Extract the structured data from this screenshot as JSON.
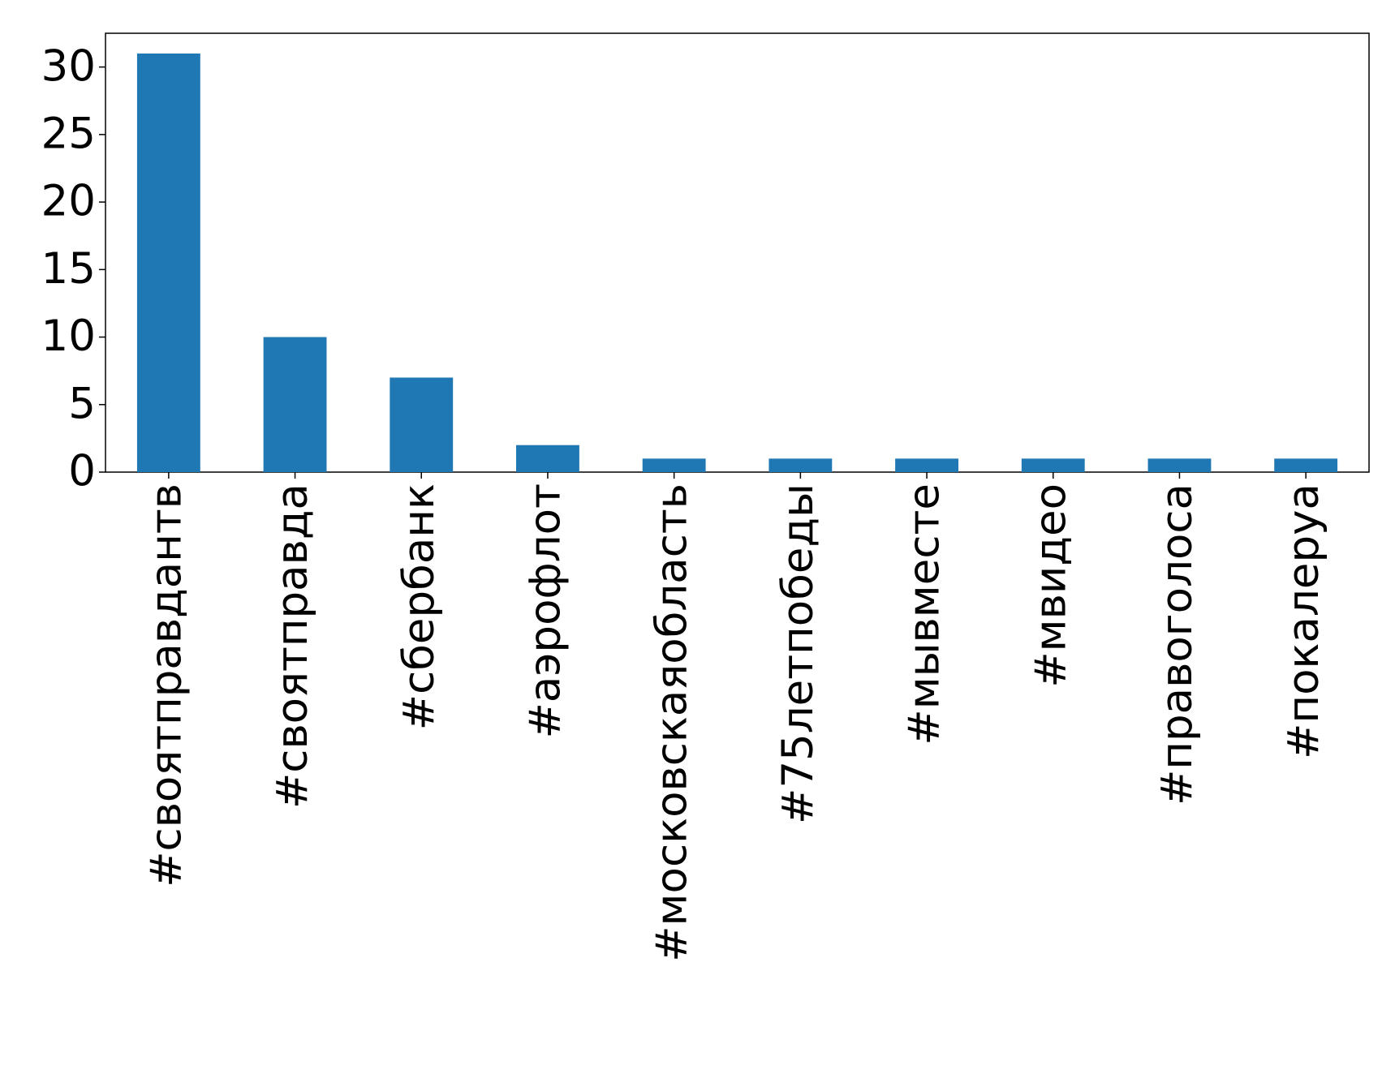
{
  "chart_data": {
    "type": "bar",
    "categories": [
      "#своятправдантв",
      "#своятправда",
      "#сбербанк",
      "#аэрофлот",
      "#московскаяобласть",
      "#75летпобеды",
      "#мывместе",
      "#мвидео",
      "#правоголоса",
      "#покалеруа"
    ],
    "values": [
      31,
      10,
      7,
      2,
      1,
      1,
      1,
      1,
      1,
      1
    ],
    "color": "#1f77b4",
    "ylim": [
      0,
      32.5
    ],
    "yticks": [
      0,
      5,
      10,
      15,
      20,
      25,
      30
    ],
    "grid": false
  }
}
